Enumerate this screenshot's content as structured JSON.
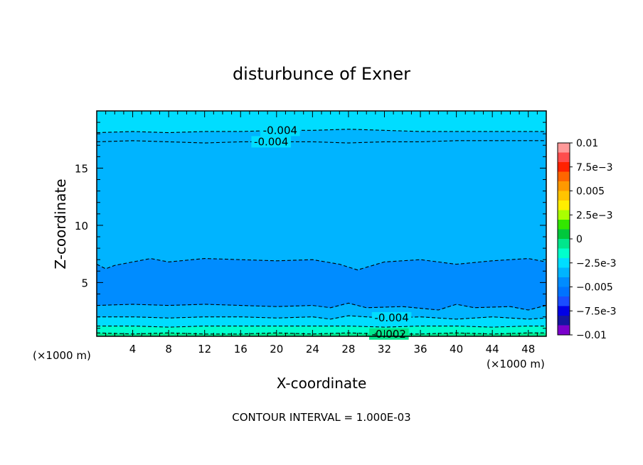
{
  "chart_data": {
    "type": "heatmap",
    "title": "disturbunce of Exner",
    "xlabel": "X-coordinate",
    "ylabel": "Z-coordinate",
    "x_unit_left": "(×1000 m)",
    "x_unit_right": "(×1000 m)",
    "footer": "CONTOUR INTERVAL = 1.000E-03",
    "xlim": [
      0,
      50
    ],
    "ylim": [
      0.3,
      20
    ],
    "x_ticks": [
      4,
      8,
      12,
      16,
      20,
      24,
      28,
      32,
      36,
      40,
      44,
      48
    ],
    "x_tick_labels": [
      "4",
      "8",
      "12",
      "16",
      "20",
      "24",
      "28",
      "32",
      "36",
      "40",
      "44",
      "48"
    ],
    "y_ticks": [
      5,
      10,
      15
    ],
    "y_tick_labels": [
      "5",
      "10",
      "15"
    ],
    "colorbar": {
      "range": [
        -0.01,
        0.01
      ],
      "levels": [
        -0.01,
        -0.009,
        -0.008,
        -0.007,
        -0.006,
        -0.005,
        -0.004,
        -0.003,
        -0.002,
        -0.001,
        0,
        0.001,
        0.002,
        0.003,
        0.004,
        0.005,
        0.006,
        0.007,
        0.008,
        0.009,
        0.01
      ],
      "colors": [
        "#7a00cc",
        "#1515a0",
        "#0000e6",
        "#1a4dff",
        "#0073ff",
        "#008cff",
        "#00b4ff",
        "#00ddff",
        "#00ffcc",
        "#00e68c",
        "#00c83c",
        "#32e600",
        "#aaff00",
        "#ffee00",
        "#ffc400",
        "#ff9900",
        "#ff6600",
        "#ff2200",
        "#ff4d4d",
        "#ff9999"
      ],
      "tick_values": [
        0.01,
        0.0075,
        0.005,
        0.0025,
        0,
        -0.0025,
        -0.005,
        -0.0075,
        -0.01
      ],
      "tick_labels": [
        "0.01",
        "7.5e-3",
        "0.005",
        "2.5e-3",
        "0",
        "-2.5e-3",
        "-0.005",
        "-7.5e-3",
        "-0.01"
      ]
    },
    "bands": [
      {
        "from": "bottom",
        "to": 0.55,
        "value": -0.0015,
        "color": "#00e68c"
      },
      {
        "from": 0.55,
        "to": 1.15,
        "value": -0.0025,
        "color": "#00ffcc"
      },
      {
        "from": 1.15,
        "to": 1.85,
        "value": -0.0035,
        "color": "#00ddff"
      },
      {
        "from": 1.85,
        "to": 2.95,
        "value": -0.0045,
        "color": "#00b4ff"
      },
      {
        "from": 2.95,
        "to": 6.8,
        "value": -0.0055,
        "color": "#008cff"
      },
      {
        "from": 6.8,
        "to": 12.4,
        "value": -0.0045,
        "color": "#00b4ff"
      },
      {
        "from": 12.4,
        "to": 17.4,
        "value": -0.0035,
        "color": "#00ddff"
      },
      {
        "from": 17.4,
        "to": 18.3,
        "value": -0.0045,
        "color": "#00b4ff"
      },
      {
        "from": 18.3,
        "to": "top",
        "value": -0.0035,
        "color": "#00ddff"
      }
    ],
    "contours": [
      {
        "value": -0.004,
        "label": "-0.004",
        "x": [
          0,
          4,
          8,
          12,
          16,
          20,
          24,
          28,
          32,
          36,
          40,
          44,
          48,
          50
        ],
        "y": [
          18.1,
          18.2,
          18.1,
          18.2,
          18.2,
          18.3,
          18.3,
          18.4,
          18.3,
          18.2,
          18.2,
          18.2,
          18.2,
          18.2
        ]
      },
      {
        "value": -0.004,
        "label": "-0.004",
        "x": [
          0,
          4,
          8,
          12,
          16,
          20,
          24,
          28,
          32,
          36,
          40,
          44,
          48,
          50
        ],
        "y": [
          17.3,
          17.4,
          17.3,
          17.2,
          17.3,
          17.3,
          17.3,
          17.2,
          17.3,
          17.3,
          17.4,
          17.4,
          17.4,
          17.4
        ]
      },
      {
        "value": -0.005,
        "label": "",
        "x": [
          0,
          1,
          2,
          4,
          6,
          8,
          12,
          16,
          20,
          24,
          27,
          29,
          32,
          36,
          40,
          44,
          48,
          50
        ],
        "y": [
          6.6,
          6.2,
          6.5,
          6.8,
          7.1,
          6.8,
          7.1,
          7.0,
          6.9,
          7.0,
          6.6,
          6.1,
          6.8,
          7.0,
          6.6,
          6.9,
          7.1,
          6.8
        ]
      },
      {
        "value": -0.005,
        "label": "",
        "x": [
          0,
          4,
          8,
          12,
          16,
          20,
          24,
          26,
          28,
          30,
          34,
          38,
          40,
          42,
          46,
          48,
          50
        ],
        "y": [
          3.0,
          3.1,
          3.0,
          3.1,
          3.0,
          2.9,
          3.0,
          2.8,
          3.2,
          2.8,
          2.9,
          2.6,
          3.1,
          2.8,
          2.9,
          2.6,
          3.0
        ]
      },
      {
        "value": -0.004,
        "label": "-0.004",
        "x": [
          0,
          4,
          8,
          12,
          16,
          20,
          24,
          26,
          28,
          32,
          36,
          40,
          44,
          48,
          50
        ],
        "y": [
          2.0,
          2.0,
          1.9,
          2.0,
          2.0,
          1.9,
          2.0,
          1.8,
          2.1,
          1.9,
          2.0,
          1.8,
          2.0,
          1.8,
          1.9
        ]
      },
      {
        "value": -0.003,
        "label": "",
        "x": [
          0,
          4,
          8,
          12,
          16,
          20,
          24,
          28,
          32,
          36,
          40,
          44,
          48,
          50
        ],
        "y": [
          1.2,
          1.2,
          1.1,
          1.2,
          1.2,
          1.2,
          1.2,
          1.2,
          1.1,
          1.2,
          1.2,
          1.1,
          1.2,
          1.2
        ]
      },
      {
        "value": -0.002,
        "label": "-0.002",
        "x": [
          0,
          4,
          8,
          12,
          16,
          20,
          24,
          28,
          32,
          36,
          40,
          44,
          48,
          50
        ],
        "y": [
          0.6,
          0.5,
          0.6,
          0.5,
          0.5,
          0.6,
          0.5,
          0.6,
          0.5,
          0.5,
          0.6,
          0.5,
          0.6,
          0.6
        ]
      }
    ]
  }
}
